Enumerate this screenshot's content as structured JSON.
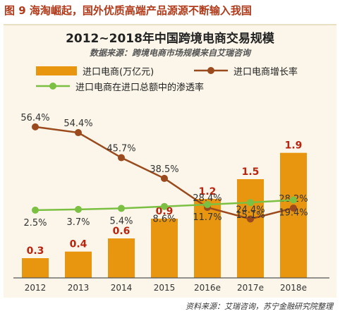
{
  "figure_caption": "图 9  海淘崛起，国外优质高端产品源源不断输入我国",
  "source_note": "资料来源：艾瑞咨询，苏宁金融研究院整理",
  "chart_data": {
    "type": "bar",
    "title": "2012~2018年中国跨境电商交易规模",
    "subtitle": "数据来源：跨境电商市场规模来自艾瑞咨询",
    "categories": [
      "2012",
      "2013",
      "2014",
      "2015",
      "2016e",
      "2017e",
      "2018e"
    ],
    "series": [
      {
        "name": "进口电商(万亿元)",
        "kind": "bar",
        "values": [
          0.3,
          0.4,
          0.6,
          0.9,
          1.2,
          1.5,
          1.9
        ],
        "labels": [
          "0.3",
          "0.4",
          "0.6",
          "0.9",
          "1.2",
          "1.5",
          "1.9"
        ],
        "color": "#e8950f",
        "label_color": "#b8240f"
      },
      {
        "name": "进口电商增长率",
        "kind": "line",
        "values": [
          56.4,
          54.4,
          45.7,
          38.5,
          28.4,
          24.4,
          28.2
        ],
        "labels": [
          "56.4%",
          "54.4%",
          "45.7%",
          "38.5%",
          "28.4%",
          "24.4%",
          "28.2%"
        ],
        "color": "#9a4a1c"
      },
      {
        "name": "进口电商在进口总额中的渗透率",
        "kind": "line",
        "values": [
          2.5,
          3.7,
          5.4,
          8.6,
          11.7,
          15.1,
          19.4
        ],
        "labels": [
          "2.5%",
          "3.7%",
          "5.4%",
          "8.6%",
          "11.7%",
          "15.1%",
          "19.4%"
        ],
        "color": "#7cc043"
      }
    ],
    "legend_position": "top",
    "grid": false
  }
}
